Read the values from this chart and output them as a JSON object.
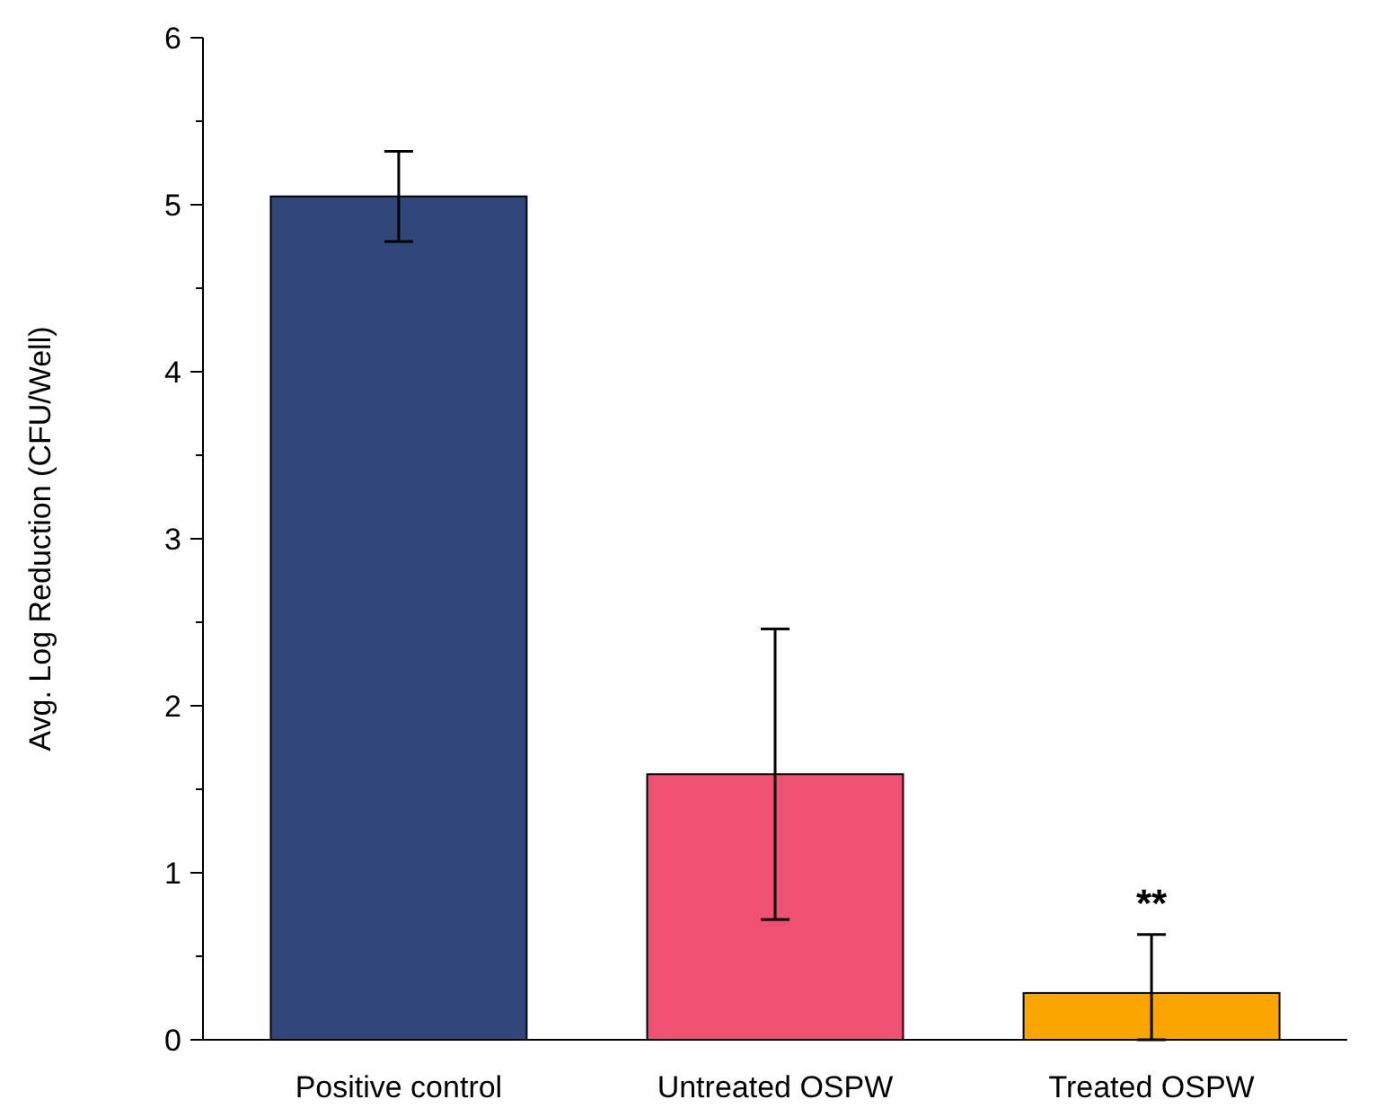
{
  "chart_data": {
    "type": "bar",
    "ylabel": "Avg. Log Reduction (CFU/Well)",
    "categories": [
      "Positive control",
      "Untreated OSPW",
      "Treated OSPW"
    ],
    "values": [
      5.05,
      1.59,
      0.28
    ],
    "errors": [
      0.27,
      0.87,
      [
        0,
        0.63
      ]
    ],
    "colors": [
      "#31477c",
      "#ef5173",
      "#fba500"
    ],
    "ylim": [
      0,
      6
    ],
    "yticks": [
      0,
      1,
      2,
      3,
      4,
      5,
      6
    ],
    "annotations": [
      {
        "text": "**",
        "x": "Treated OSPW",
        "y": 0.63
      }
    ],
    "grid": false
  }
}
